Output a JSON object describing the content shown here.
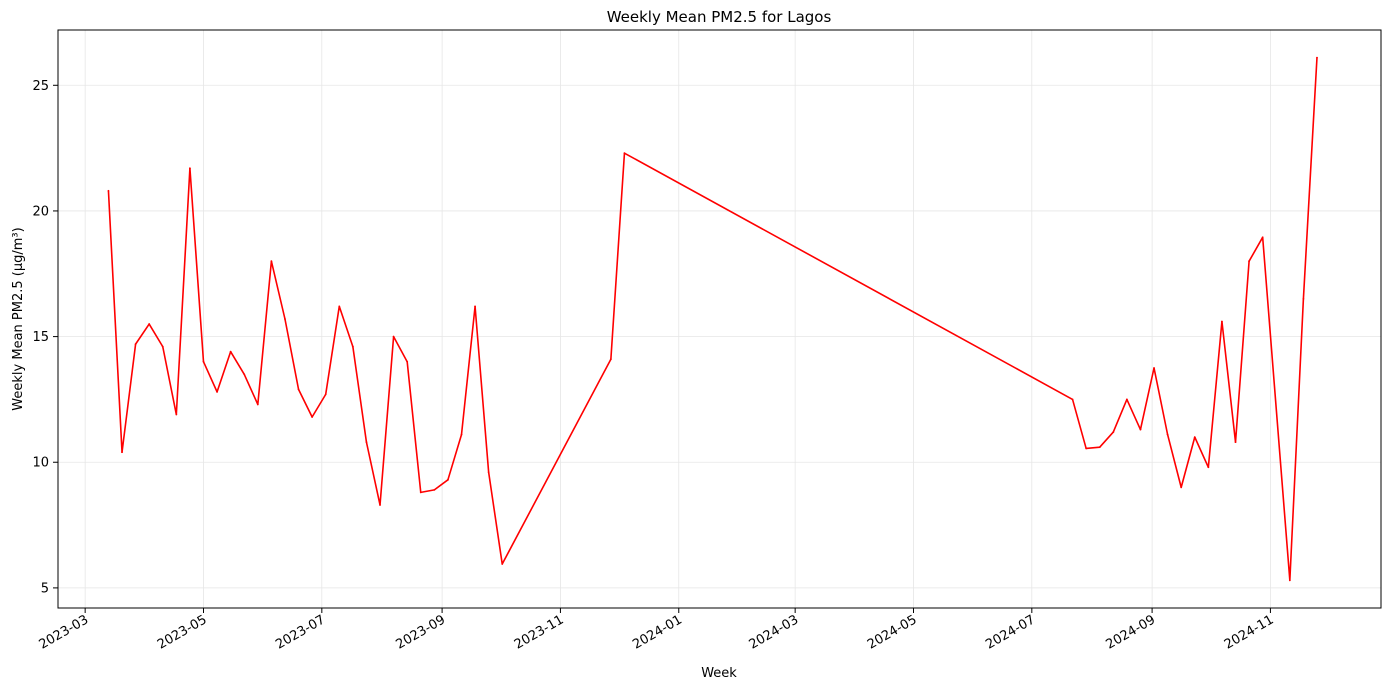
{
  "chart_data": {
    "type": "line",
    "title": "Weekly Mean PM2.5 for Lagos",
    "xlabel": "Week",
    "ylabel": "Weekly Mean PM2.5 (µg/m³)",
    "x_type": "date",
    "xlim": [
      "2023-02-15",
      "2024-12-28"
    ],
    "ylim": [
      4.2,
      27.2
    ],
    "x_ticks": [
      "2023-03-01",
      "2023-05-01",
      "2023-07-01",
      "2023-09-01",
      "2023-11-01",
      "2024-01-01",
      "2024-03-01",
      "2024-05-01",
      "2024-07-01",
      "2024-09-01",
      "2024-11-01"
    ],
    "x_tick_labels": [
      "2023-03",
      "2023-05",
      "2023-07",
      "2023-09",
      "2023-11",
      "2024-01",
      "2024-03",
      "2024-05",
      "2024-07",
      "2024-09",
      "2024-11"
    ],
    "y_ticks": [
      5,
      10,
      15,
      20,
      25
    ],
    "y_tick_labels": [
      "5",
      "10",
      "15",
      "20",
      "25"
    ],
    "grid": true,
    "series": [
      {
        "color": "#ff0000",
        "points": [
          [
            "2023-03-13",
            20.8
          ],
          [
            "2023-03-20",
            10.4
          ],
          [
            "2023-03-27",
            14.7
          ],
          [
            "2023-04-03",
            15.5
          ],
          [
            "2023-04-10",
            14.6
          ],
          [
            "2023-04-17",
            11.9
          ],
          [
            "2023-04-24",
            21.7
          ],
          [
            "2023-05-01",
            14.0
          ],
          [
            "2023-05-08",
            12.8
          ],
          [
            "2023-05-15",
            14.4
          ],
          [
            "2023-05-22",
            13.5
          ],
          [
            "2023-05-29",
            12.3
          ],
          [
            "2023-06-05",
            18.0
          ],
          [
            "2023-06-12",
            15.7
          ],
          [
            "2023-06-19",
            12.9
          ],
          [
            "2023-06-26",
            11.8
          ],
          [
            "2023-07-03",
            12.7
          ],
          [
            "2023-07-10",
            16.2
          ],
          [
            "2023-07-17",
            14.6
          ],
          [
            "2023-07-24",
            10.8
          ],
          [
            "2023-07-31",
            8.3
          ],
          [
            "2023-08-07",
            15.0
          ],
          [
            "2023-08-14",
            14.0
          ],
          [
            "2023-08-21",
            8.8
          ],
          [
            "2023-08-28",
            8.9
          ],
          [
            "2023-09-04",
            9.3
          ],
          [
            "2023-09-11",
            11.1
          ],
          [
            "2023-09-18",
            16.2
          ],
          [
            "2023-09-25",
            9.6
          ],
          [
            "2023-10-02",
            5.95
          ],
          [
            "2023-11-27",
            14.1
          ],
          [
            "2023-12-04",
            22.3
          ],
          [
            "2024-07-22",
            12.5
          ],
          [
            "2024-07-29",
            10.55
          ],
          [
            "2024-08-05",
            10.6
          ],
          [
            "2024-08-12",
            11.2
          ],
          [
            "2024-08-19",
            12.5
          ],
          [
            "2024-08-26",
            11.3
          ],
          [
            "2024-09-02",
            13.75
          ],
          [
            "2024-09-09",
            11.1
          ],
          [
            "2024-09-16",
            9.0
          ],
          [
            "2024-09-23",
            11.0
          ],
          [
            "2024-09-30",
            9.8
          ],
          [
            "2024-10-07",
            15.6
          ],
          [
            "2024-10-14",
            10.8
          ],
          [
            "2024-10-21",
            18.0
          ],
          [
            "2024-10-28",
            18.95
          ],
          [
            "2024-11-11",
            5.3
          ],
          [
            "2024-11-18",
            16.5
          ],
          [
            "2024-11-25",
            26.1
          ]
        ]
      }
    ]
  }
}
